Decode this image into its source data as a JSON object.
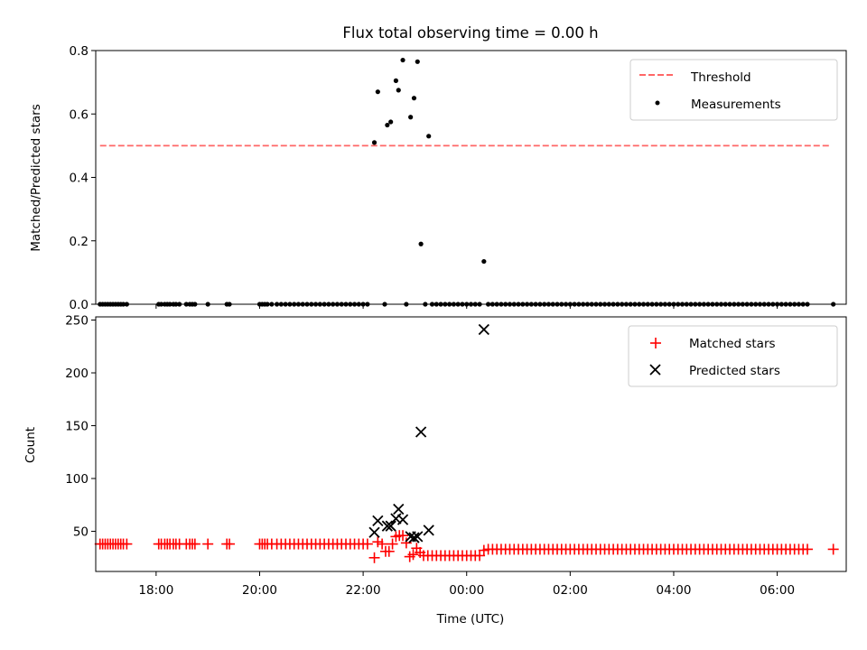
{
  "figure_title": "Flux total observing time = 0.00 h",
  "chart_data": [
    {
      "type": "scatter",
      "ylabel": "Matched/Predicted stars",
      "xlabel": "",
      "x_axis_type": "time",
      "xlim": [
        "16:50",
        "07:20"
      ],
      "ylim": [
        0,
        0.8
      ],
      "yticks": [
        0.0,
        0.2,
        0.4,
        0.6,
        0.8
      ],
      "yticklabels": [
        "0.0",
        "0.2",
        "0.4",
        "0.6",
        "0.8"
      ],
      "xticklabels_shown": false,
      "grid": false,
      "legend_position": "top-right",
      "threshold": {
        "name": "Threshold",
        "value": 0.5,
        "x_range": [
          "16:55",
          "07:00"
        ],
        "color": "#ff6666",
        "style": "dashed"
      },
      "series": [
        {
          "name": "Measurements",
          "color": "#000000",
          "marker": "dot",
          "points": [
            [
              "16:55",
              0
            ],
            [
              "16:58",
              0
            ],
            [
              "17:01",
              0
            ],
            [
              "17:04",
              0
            ],
            [
              "17:07",
              0
            ],
            [
              "17:10",
              0
            ],
            [
              "17:13",
              0
            ],
            [
              "17:16",
              0
            ],
            [
              "17:19",
              0
            ],
            [
              "17:22",
              0
            ],
            [
              "17:26",
              0
            ],
            [
              "18:03",
              0
            ],
            [
              "18:06",
              0
            ],
            [
              "18:10",
              0
            ],
            [
              "18:13",
              0
            ],
            [
              "18:16",
              0
            ],
            [
              "18:20",
              0
            ],
            [
              "18:23",
              0
            ],
            [
              "18:27",
              0
            ],
            [
              "18:35",
              0
            ],
            [
              "18:39",
              0
            ],
            [
              "18:42",
              0
            ],
            [
              "18:45",
              0
            ],
            [
              "19:00",
              0
            ],
            [
              "19:22",
              0
            ],
            [
              "19:25",
              0
            ],
            [
              "20:00",
              0
            ],
            [
              "20:03",
              0
            ],
            [
              "20:06",
              0
            ],
            [
              "20:09",
              0
            ],
            [
              "20:14",
              0
            ],
            [
              "20:20",
              0
            ],
            [
              "20:25",
              0
            ],
            [
              "20:30",
              0
            ],
            [
              "20:35",
              0
            ],
            [
              "20:40",
              0
            ],
            [
              "20:45",
              0
            ],
            [
              "20:50",
              0
            ],
            [
              "20:55",
              0
            ],
            [
              "21:00",
              0
            ],
            [
              "21:05",
              0
            ],
            [
              "21:10",
              0
            ],
            [
              "21:15",
              0
            ],
            [
              "21:20",
              0
            ],
            [
              "21:25",
              0
            ],
            [
              "21:30",
              0
            ],
            [
              "21:35",
              0
            ],
            [
              "21:40",
              0
            ],
            [
              "21:45",
              0
            ],
            [
              "21:50",
              0
            ],
            [
              "21:55",
              0
            ],
            [
              "22:00",
              0
            ],
            [
              "22:05",
              0
            ],
            [
              "22:13",
              0.51
            ],
            [
              "22:17",
              0.67
            ],
            [
              "22:25",
              0
            ],
            [
              "22:28",
              0.565
            ],
            [
              "22:32",
              0.575
            ],
            [
              "22:38",
              0.705
            ],
            [
              "22:41",
              0.675
            ],
            [
              "22:46",
              0.77
            ],
            [
              "22:50",
              0
            ],
            [
              "22:55",
              0.59
            ],
            [
              "22:59",
              0.65
            ],
            [
              "23:03",
              0.765
            ],
            [
              "23:07",
              0.19
            ],
            [
              "23:12",
              0
            ],
            [
              "23:16",
              0.53
            ],
            [
              "23:20",
              0
            ],
            [
              "23:25",
              0
            ],
            [
              "23:30",
              0
            ],
            [
              "23:35",
              0
            ],
            [
              "23:40",
              0
            ],
            [
              "23:45",
              0
            ],
            [
              "23:50",
              0
            ],
            [
              "23:55",
              0
            ],
            [
              "00:00",
              0
            ],
            [
              "00:05",
              0
            ],
            [
              "00:10",
              0
            ],
            [
              "00:15",
              0
            ],
            [
              "00:20",
              0.135
            ]
          ],
          "zero_run": {
            "start": "00:25",
            "end": "06:36",
            "step_min": 5,
            "value": 0
          },
          "extra_points": [
            [
              "07:05",
              0
            ]
          ]
        }
      ]
    },
    {
      "type": "scatter",
      "ylabel": "Count",
      "xlabel": "Time (UTC)",
      "x_axis_type": "time",
      "xlim": [
        "16:50",
        "07:20"
      ],
      "ylim": [
        12,
        253
      ],
      "yticks": [
        50,
        100,
        150,
        200,
        250
      ],
      "yticklabels": [
        "50",
        "100",
        "150",
        "200",
        "250"
      ],
      "xticks": [
        "18:00",
        "20:00",
        "22:00",
        "00:00",
        "02:00",
        "04:00",
        "06:00"
      ],
      "xticklabels": [
        "18:00",
        "20:00",
        "22:00",
        "00:00",
        "02:00",
        "04:00",
        "06:00"
      ],
      "grid": false,
      "legend_position": "top-right",
      "series": [
        {
          "name": "Matched stars",
          "color": "#ff0000",
          "marker": "plus",
          "points": [
            [
              "16:55",
              38
            ],
            [
              "16:58",
              38
            ],
            [
              "17:01",
              38
            ],
            [
              "17:04",
              38
            ],
            [
              "17:07",
              38
            ],
            [
              "17:10",
              38
            ],
            [
              "17:13",
              38
            ],
            [
              "17:16",
              38
            ],
            [
              "17:19",
              38
            ],
            [
              "17:22",
              38
            ],
            [
              "17:26",
              38
            ],
            [
              "18:03",
              38
            ],
            [
              "18:06",
              38
            ],
            [
              "18:10",
              38
            ],
            [
              "18:13",
              38
            ],
            [
              "18:16",
              38
            ],
            [
              "18:20",
              38
            ],
            [
              "18:23",
              38
            ],
            [
              "18:27",
              38
            ],
            [
              "18:35",
              38
            ],
            [
              "18:39",
              38
            ],
            [
              "18:42",
              38
            ],
            [
              "18:45",
              38
            ],
            [
              "19:00",
              38
            ],
            [
              "19:22",
              38
            ],
            [
              "19:25",
              38
            ],
            [
              "20:00",
              38
            ],
            [
              "20:03",
              38
            ],
            [
              "20:06",
              38
            ],
            [
              "20:09",
              38
            ],
            [
              "20:14",
              38
            ],
            [
              "20:20",
              38
            ],
            [
              "20:25",
              38
            ],
            [
              "20:30",
              38
            ],
            [
              "20:35",
              38
            ],
            [
              "20:40",
              38
            ],
            [
              "20:45",
              38
            ],
            [
              "20:50",
              38
            ],
            [
              "20:55",
              38
            ],
            [
              "21:00",
              38
            ],
            [
              "21:05",
              38
            ],
            [
              "21:10",
              38
            ],
            [
              "21:15",
              38
            ],
            [
              "21:20",
              38
            ],
            [
              "21:25",
              38
            ],
            [
              "21:30",
              38
            ],
            [
              "21:35",
              38
            ],
            [
              "21:40",
              38
            ],
            [
              "21:45",
              38
            ],
            [
              "21:50",
              38
            ],
            [
              "21:55",
              38
            ],
            [
              "22:00",
              38
            ],
            [
              "22:05",
              38
            ],
            [
              "22:13",
              25
            ],
            [
              "22:17",
              40
            ],
            [
              "22:22",
              38
            ],
            [
              "22:26",
              31
            ],
            [
              "22:30",
              31
            ],
            [
              "22:34",
              38
            ],
            [
              "22:38",
              45
            ],
            [
              "22:42",
              46
            ],
            [
              "22:46",
              46
            ],
            [
              "22:50",
              39
            ],
            [
              "22:54",
              26
            ],
            [
              "22:58",
              28
            ],
            [
              "23:02",
              34
            ],
            [
              "23:06",
              30
            ],
            [
              "23:10",
              27
            ],
            [
              "23:15",
              27
            ],
            [
              "23:20",
              27
            ],
            [
              "23:25",
              27
            ],
            [
              "23:30",
              27
            ],
            [
              "23:35",
              27
            ],
            [
              "23:40",
              27
            ],
            [
              "23:45",
              27
            ],
            [
              "23:50",
              27
            ],
            [
              "23:55",
              27
            ],
            [
              "00:00",
              27
            ],
            [
              "00:05",
              27
            ],
            [
              "00:10",
              27
            ],
            [
              "00:15",
              27
            ],
            [
              "00:20",
              32
            ]
          ],
          "run": {
            "start": "00:25",
            "end": "06:36",
            "step_min": 5,
            "value": 33
          },
          "extra_points": [
            [
              "07:05",
              33
            ]
          ]
        },
        {
          "name": "Predicted stars",
          "color": "#000000",
          "marker": "x",
          "points": [
            [
              "22:13",
              49
            ],
            [
              "22:17",
              60
            ],
            [
              "22:28",
              55
            ],
            [
              "22:32",
              55
            ],
            [
              "22:38",
              62
            ],
            [
              "22:41",
              71
            ],
            [
              "22:46",
              61
            ],
            [
              "22:55",
              45
            ],
            [
              "22:59",
              44
            ],
            [
              "23:03",
              45
            ],
            [
              "23:07",
              144
            ],
            [
              "23:16",
              51
            ],
            [
              "00:20",
              241
            ]
          ]
        }
      ]
    }
  ],
  "legend_top": {
    "threshold_label": "Threshold",
    "measurements_label": "Measurements"
  },
  "legend_bottom": {
    "matched_label": "Matched stars",
    "predicted_label": "Predicted stars"
  }
}
